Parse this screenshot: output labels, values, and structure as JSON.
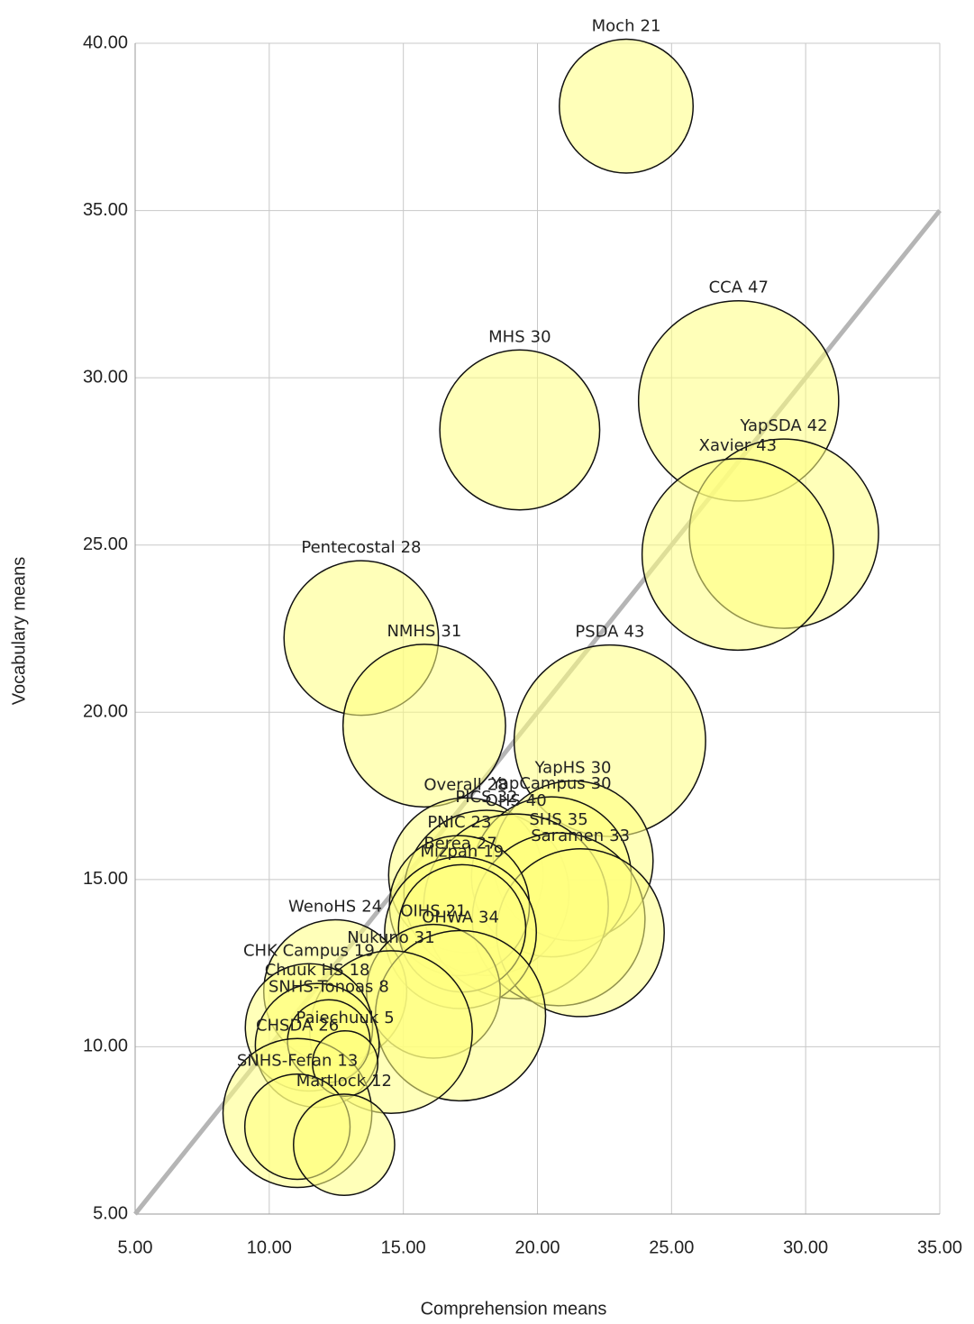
{
  "chart_data": {
    "type": "bubble",
    "x_label": "Comprehension means",
    "y_label": "Vocabulary means",
    "xlim": [
      5,
      35
    ],
    "ylim": [
      5,
      40
    ],
    "xticks": [
      {
        "value": 5,
        "label": "5.00"
      },
      {
        "value": 10,
        "label": "10.00"
      },
      {
        "value": 15,
        "label": "15.00"
      },
      {
        "value": 20,
        "label": "20.00"
      },
      {
        "value": 25,
        "label": "25.00"
      },
      {
        "value": 30,
        "label": "30.00"
      },
      {
        "value": 35,
        "label": "35.00"
      }
    ],
    "yticks": [
      {
        "value": 5,
        "label": "5.00"
      },
      {
        "value": 10,
        "label": "10.00"
      },
      {
        "value": 15,
        "label": "15.00"
      },
      {
        "value": 20,
        "label": "20.00"
      },
      {
        "value": 25,
        "label": "25.00"
      },
      {
        "value": 30,
        "label": "30.00"
      },
      {
        "value": 35,
        "label": "35.00"
      },
      {
        "value": 40,
        "label": "40.00"
      }
    ],
    "grid": true,
    "color": "#ffff80",
    "reference_line": {
      "x": [
        5,
        35
      ],
      "y": [
        5,
        35
      ],
      "color": "#b5b5b5"
    },
    "names": [
      "Moch",
      "CCA",
      "YapSDA",
      "Xavier",
      "MHS",
      "Pentecostal",
      "NMHS",
      "PSDA",
      "Overall",
      "PICS",
      "YapHS",
      "YapCampus",
      "OHS",
      "SHS",
      "Saramen",
      "PNIC",
      "Berea",
      "Mizpah",
      "WenoHS",
      "OIHS",
      "OHWA",
      "Nukuno",
      "CHK Campus",
      "Chuuk HS",
      "SNHS-Tonoas",
      "CHSDA",
      "Paiechuuk",
      "SNHS-Fefan",
      "Martlock"
    ],
    "x": [
      23.31,
      27.5,
      29.19,
      27.47,
      19.34,
      13.43,
      15.78,
      22.7,
      17.33,
      18.1,
      21.33,
      20.52,
      19.2,
      20.79,
      21.6,
      17.09,
      17.13,
      17.19,
      12.46,
      16.12,
      17.13,
      14.54,
      11.48,
      11.79,
      12.22,
      11.05,
      12.83,
      11.05,
      12.79
    ],
    "y": [
      38.12,
      29.31,
      25.34,
      24.72,
      28.44,
      22.22,
      19.6,
      19.15,
      15.13,
      14.6,
      15.56,
      15.08,
      14.2,
      13.81,
      13.41,
      14.22,
      13.41,
      13.54,
      11.66,
      11.66,
      10.93,
      10.44,
      10.58,
      10.04,
      10.17,
      8.02,
      9.5,
      7.61,
      7.07
    ],
    "sizes": [
      21,
      47,
      42,
      43,
      30,
      28,
      31,
      43,
      28,
      32,
      30,
      30,
      40,
      35,
      33,
      23,
      27,
      19,
      24,
      21,
      34,
      31,
      19,
      18,
      8,
      26,
      5,
      13,
      12
    ]
  }
}
